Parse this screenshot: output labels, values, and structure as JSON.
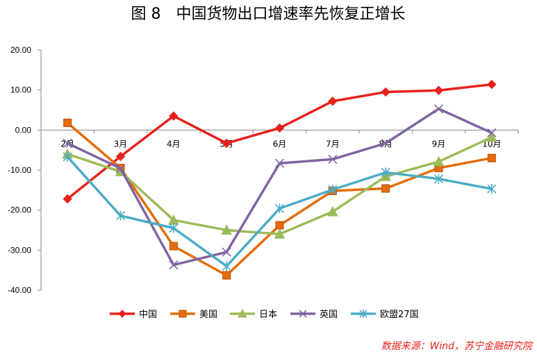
{
  "chart_data": {
    "type": "line",
    "title": "图 8　中国货物出口增速率先恢复正增长",
    "categories": [
      "2月",
      "3月",
      "4月",
      "5月",
      "6月",
      "7月",
      "8月",
      "9月",
      "10月"
    ],
    "ylim": [
      -40,
      20
    ],
    "yticks": [
      20,
      10,
      0,
      -10,
      -20,
      -30,
      -40
    ],
    "ytick_labels": [
      "20.00",
      "10.00",
      "0.00",
      "-10.00",
      "-20.00",
      "-30.00",
      "-40.00"
    ],
    "xlabel": "",
    "ylabel": "",
    "legend_position": "bottom",
    "series": [
      {
        "name": "中国",
        "color": "#e8211c",
        "marker": "diamond",
        "values": [
          -17.2,
          -6.6,
          3.5,
          -3.3,
          0.5,
          7.2,
          9.5,
          9.9,
          11.4
        ]
      },
      {
        "name": "美国",
        "color": "#e46c0a",
        "marker": "square",
        "values": [
          1.8,
          -9.5,
          -29.0,
          -36.3,
          -23.8,
          -15.2,
          -14.6,
          -9.5,
          -7.0
        ]
      },
      {
        "name": "日本",
        "color": "#9bbb59",
        "marker": "triangle",
        "values": [
          -6.0,
          -10.4,
          -22.5,
          -25.0,
          -26.0,
          -20.4,
          -11.6,
          -7.9,
          -1.8
        ]
      },
      {
        "name": "英国",
        "color": "#8064a2",
        "marker": "x",
        "values": [
          -3.3,
          -9.6,
          -33.7,
          -30.5,
          -8.3,
          -7.3,
          -3.3,
          5.3,
          -0.7
        ]
      },
      {
        "name": "欧盟27国",
        "color": "#4bacc6",
        "marker": "star",
        "values": [
          -6.7,
          -21.4,
          -24.5,
          -34.0,
          -19.6,
          -14.9,
          -10.6,
          -12.2,
          -14.7
        ]
      }
    ]
  },
  "source_note": "数据来源：Wind，苏宁金融研究院"
}
